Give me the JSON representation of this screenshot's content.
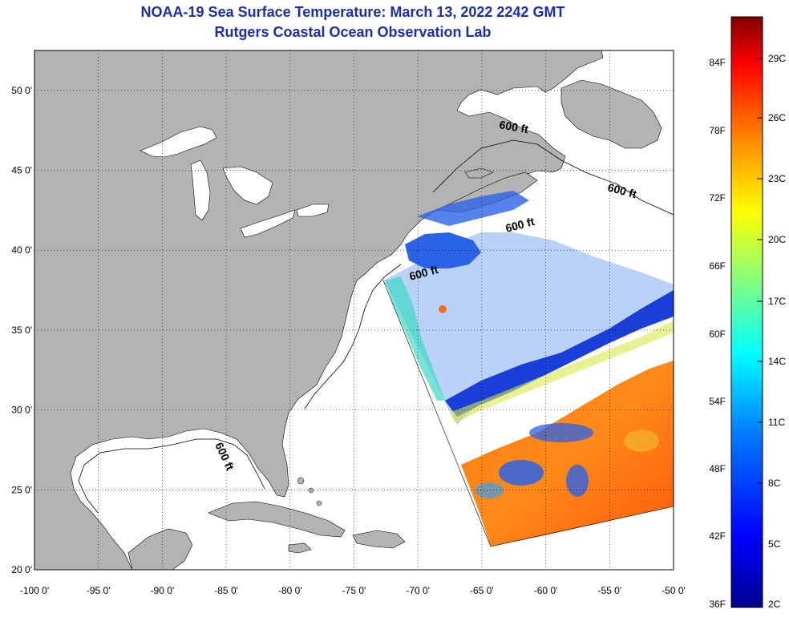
{
  "header": {
    "title": "NOAA-19 Sea Surface Temperature:  March 13, 2022 2242 GMT",
    "subtitle": "Rutgers Coastal Ocean Observation Lab"
  },
  "map": {
    "lon_range": [
      -100,
      -50
    ],
    "lat_range": [
      20,
      52.5
    ],
    "lon_ticks": [
      {
        "value": -100,
        "label": "-100 0'"
      },
      {
        "value": -95,
        "label": "-95 0'"
      },
      {
        "value": -90,
        "label": "-90 0'"
      },
      {
        "value": -85,
        "label": "-85 0'"
      },
      {
        "value": -80,
        "label": "-80 0'"
      },
      {
        "value": -75,
        "label": "-75 0'"
      },
      {
        "value": -70,
        "label": "-70 0'"
      },
      {
        "value": -65,
        "label": "-65 0'"
      },
      {
        "value": -60,
        "label": "-60 0'"
      },
      {
        "value": -55,
        "label": "-55 0'"
      },
      {
        "value": -50,
        "label": "-50 0'"
      }
    ],
    "lat_ticks": [
      {
        "value": 20,
        "label": "20 0'"
      },
      {
        "value": 25,
        "label": "25 0'"
      },
      {
        "value": 30,
        "label": "30 0'"
      },
      {
        "value": 35,
        "label": "35 0'"
      },
      {
        "value": 40,
        "label": "40 0'"
      },
      {
        "value": 45,
        "label": "45 0'"
      },
      {
        "value": 50,
        "label": "50 0'"
      }
    ],
    "grid": "dotted",
    "land_color": "#b3b3b3",
    "ocean_color": "#ffffff",
    "contour_labels": [
      "600 ft",
      "600 ft",
      "600 ft",
      "600 ft",
      "600 ft"
    ]
  },
  "colorbar": {
    "fahrenheit_labels": [
      "84F",
      "78F",
      "72F",
      "66F",
      "60F",
      "54F",
      "48F",
      "42F",
      "36F"
    ],
    "celsius_labels": [
      "29C",
      "26C",
      "23C",
      "20C",
      "17C",
      "14C",
      "11C",
      "8C",
      "5C",
      "2C"
    ],
    "colors": [
      "#00008f",
      "#0000ff",
      "#0080ff",
      "#00ffff",
      "#80ff80",
      "#ffff00",
      "#ff8000",
      "#ff0000",
      "#800000"
    ]
  }
}
